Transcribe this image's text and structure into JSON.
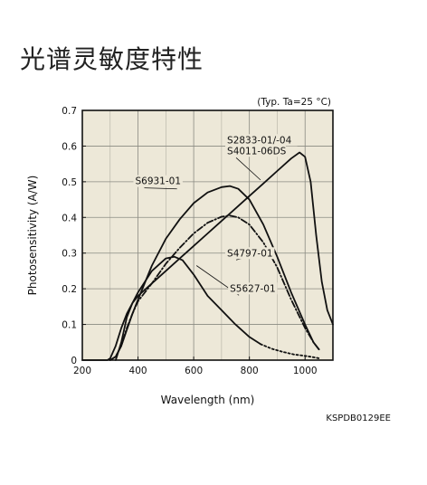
{
  "page": {
    "title": "光谱灵敏度特性"
  },
  "chart_data": {
    "type": "line",
    "title": "",
    "condition": "(Typ. Ta=25 °C)",
    "xlabel": "Wavelength (nm)",
    "ylabel": "Photosensitivity (A/W)",
    "xlim": [
      200,
      1100
    ],
    "ylim": [
      0,
      0.7
    ],
    "xticks": [
      200,
      400,
      600,
      800,
      1000
    ],
    "yticks": [
      0,
      0.1,
      0.2,
      0.3,
      0.4,
      0.5,
      0.6,
      0.7
    ],
    "xtick_labels": [
      "200",
      "400",
      "600",
      "800",
      "1000"
    ],
    "ytick_labels": [
      "0",
      "0.1",
      "0.2",
      "0.3",
      "0.4",
      "0.5",
      "0.6",
      "0.7"
    ],
    "x_minor_step": 100,
    "grid": true,
    "doc_code": "KSPDB0129EE",
    "series": [
      {
        "name": "S2833-01/-04 S4011-06DS",
        "style": "solid",
        "points": [
          [
            320,
            0.0
          ],
          [
            340,
            0.05
          ],
          [
            360,
            0.12
          ],
          [
            380,
            0.16
          ],
          [
            400,
            0.18
          ],
          [
            450,
            0.215
          ],
          [
            500,
            0.25
          ],
          [
            550,
            0.285
          ],
          [
            600,
            0.32
          ],
          [
            650,
            0.355
          ],
          [
            700,
            0.39
          ],
          [
            750,
            0.425
          ],
          [
            800,
            0.46
          ],
          [
            850,
            0.495
          ],
          [
            900,
            0.53
          ],
          [
            950,
            0.565
          ],
          [
            980,
            0.582
          ],
          [
            1000,
            0.57
          ],
          [
            1020,
            0.5
          ],
          [
            1040,
            0.35
          ],
          [
            1060,
            0.22
          ],
          [
            1080,
            0.14
          ],
          [
            1100,
            0.1
          ]
        ]
      },
      {
        "name": "S6931-01",
        "style": "solid",
        "points": [
          [
            300,
            0.0
          ],
          [
            320,
            0.01
          ],
          [
            340,
            0.04
          ],
          [
            360,
            0.085
          ],
          [
            380,
            0.13
          ],
          [
            400,
            0.17
          ],
          [
            450,
            0.265
          ],
          [
            500,
            0.34
          ],
          [
            550,
            0.395
          ],
          [
            600,
            0.44
          ],
          [
            650,
            0.47
          ],
          [
            700,
            0.485
          ],
          [
            730,
            0.488
          ],
          [
            760,
            0.48
          ],
          [
            800,
            0.45
          ],
          [
            850,
            0.38
          ],
          [
            900,
            0.29
          ],
          [
            950,
            0.19
          ],
          [
            1000,
            0.1
          ],
          [
            1030,
            0.05
          ],
          [
            1050,
            0.03
          ]
        ]
      },
      {
        "name": "S4797-01",
        "style": "dashdot",
        "points": [
          [
            300,
            0.0
          ],
          [
            320,
            0.01
          ],
          [
            340,
            0.04
          ],
          [
            360,
            0.09
          ],
          [
            380,
            0.13
          ],
          [
            400,
            0.165
          ],
          [
            450,
            0.215
          ],
          [
            500,
            0.27
          ],
          [
            550,
            0.315
          ],
          [
            600,
            0.355
          ],
          [
            650,
            0.385
          ],
          [
            700,
            0.402
          ],
          [
            730,
            0.405
          ],
          [
            760,
            0.4
          ],
          [
            800,
            0.38
          ],
          [
            850,
            0.33
          ],
          [
            900,
            0.26
          ],
          [
            950,
            0.17
          ],
          [
            1000,
            0.09
          ],
          [
            1030,
            0.05
          ],
          [
            1050,
            0.03
          ]
        ]
      },
      {
        "name": "S5627-01",
        "style": "solid",
        "points": [
          [
            200,
            0.0
          ],
          [
            290,
            0.0
          ],
          [
            300,
            0.005
          ],
          [
            320,
            0.04
          ],
          [
            340,
            0.09
          ],
          [
            360,
            0.13
          ],
          [
            380,
            0.16
          ],
          [
            400,
            0.19
          ],
          [
            450,
            0.25
          ],
          [
            500,
            0.285
          ],
          [
            530,
            0.29
          ],
          [
            560,
            0.28
          ],
          [
            600,
            0.24
          ],
          [
            650,
            0.18
          ],
          [
            700,
            0.14
          ],
          [
            750,
            0.1
          ],
          [
            800,
            0.065
          ],
          [
            840,
            0.045
          ]
        ]
      },
      {
        "name": "S5627-01 (extension)",
        "style": "dotted",
        "points": [
          [
            840,
            0.045
          ],
          [
            880,
            0.032
          ],
          [
            920,
            0.023
          ],
          [
            960,
            0.016
          ],
          [
            1000,
            0.012
          ],
          [
            1030,
            0.008
          ],
          [
            1050,
            0.005
          ]
        ]
      }
    ],
    "annotations": [
      {
        "lines": [
          "S2833-01/-04",
          "S4011-06DS"
        ],
        "wl": 720,
        "sens": 0.608,
        "to": [
          840,
          0.505
        ]
      },
      {
        "lines": [
          "S6931-01"
        ],
        "wl": 390,
        "sens": 0.493,
        "to": [
          540,
          0.48
        ]
      },
      {
        "lines": [
          "S4797-01"
        ],
        "wl": 720,
        "sens": 0.291,
        "to": [
          890,
          0.31
        ]
      },
      {
        "lines": [
          "S5627-01"
        ],
        "wl": 730,
        "sens": 0.192,
        "to": [
          610,
          0.265
        ]
      }
    ]
  }
}
